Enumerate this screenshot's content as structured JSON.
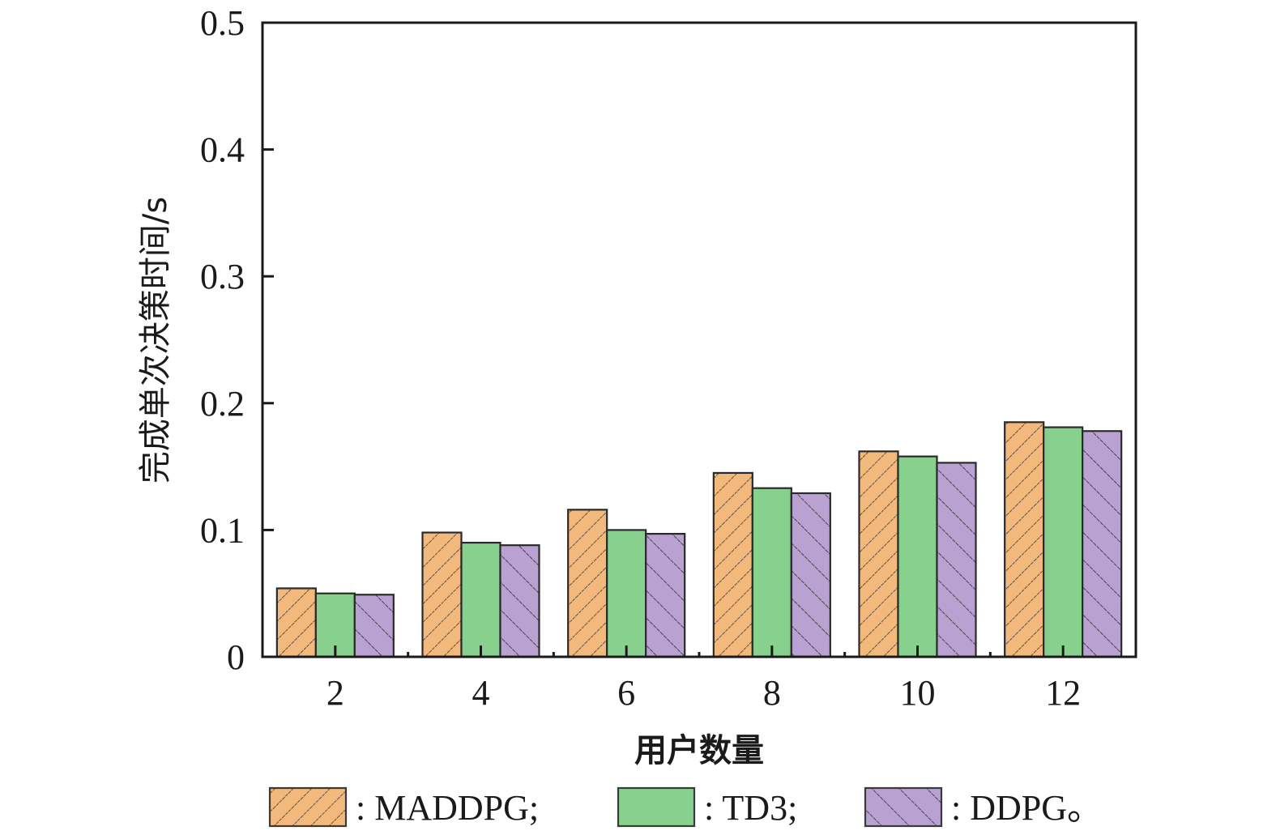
{
  "chart_data": {
    "type": "bar",
    "title": "",
    "xlabel": "用户数量",
    "ylabel": "完成单次决策时间/s",
    "categories": [
      "2",
      "4",
      "6",
      "8",
      "10",
      "12"
    ],
    "ylim": [
      0,
      0.5
    ],
    "yticks": [
      "0",
      "0.1",
      "0.2",
      "0.3",
      "0.4",
      "0.5"
    ],
    "ytick_values": [
      0,
      0.1,
      0.2,
      0.3,
      0.4,
      0.5
    ],
    "grid": false,
    "legend_position": "bottom",
    "series": [
      {
        "name": "MADDPG",
        "legend_label": ": MADDPG;",
        "color": "#f3b87c",
        "hatch": "forward",
        "values": [
          0.054,
          0.098,
          0.116,
          0.145,
          0.162,
          0.185
        ]
      },
      {
        "name": "TD3",
        "legend_label": ": TD3;",
        "color": "#88d08e",
        "hatch": "none",
        "values": [
          0.05,
          0.09,
          0.1,
          0.133,
          0.158,
          0.181
        ]
      },
      {
        "name": "DDPG",
        "legend_label": ": DDPG。",
        "color": "#b9a2d2",
        "hatch": "back",
        "values": [
          0.049,
          0.088,
          0.097,
          0.129,
          0.153,
          0.178
        ]
      }
    ]
  }
}
